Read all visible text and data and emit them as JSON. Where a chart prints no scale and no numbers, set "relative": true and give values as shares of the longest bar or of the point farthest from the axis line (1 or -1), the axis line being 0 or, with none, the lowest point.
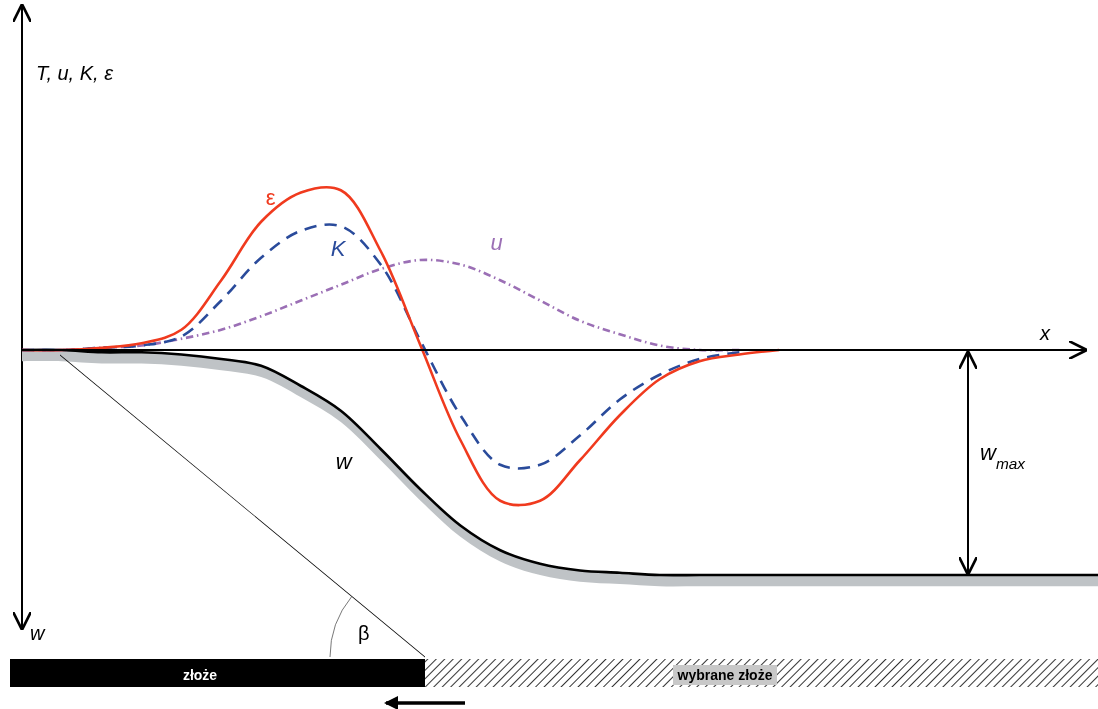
{
  "chart_data": {
    "type": "line",
    "relative": true,
    "xlabel": "x",
    "categories": [
      null,
      null,
      null,
      null,
      null,
      null,
      null,
      null,
      null,
      null,
      null,
      null,
      null,
      null,
      null,
      null,
      null,
      null,
      null,
      null,
      null,
      null,
      null,
      null,
      null,
      null,
      null,
      null
    ],
    "series": [
      {
        "name": "w",
        "color": "#000000",
        "line_style": "solid",
        "values": [
          0,
          0,
          -0.01,
          -0.01,
          -0.02,
          -0.04,
          -0.07,
          -0.16,
          -0.27,
          -0.44,
          -0.62,
          -0.78,
          -0.89,
          -0.95,
          -0.98,
          -0.99,
          -1,
          -1,
          -1,
          -1,
          -1,
          -1,
          -1,
          -1,
          -1,
          -1,
          -1,
          -1
        ],
        "upper": [
          0,
          0,
          -0.01,
          -0.01,
          -0.02,
          -0.04,
          -0.07,
          -0.16,
          -0.27,
          -0.44,
          -0.62,
          -0.78,
          -0.89,
          -0.95,
          -0.98,
          -0.99,
          -1,
          -1,
          -1,
          -1,
          -1,
          -1,
          -1,
          -1,
          -1,
          -1,
          -1,
          -1
        ],
        "lower": [
          -0.05,
          -0.05,
          -0.06,
          -0.06,
          -0.07,
          -0.09,
          -0.12,
          -0.21,
          -0.32,
          -0.49,
          -0.67,
          -0.83,
          -0.94,
          -1,
          -1.03,
          -1.04,
          -1.05,
          -1.05,
          -1.05,
          -1.05,
          -1.05,
          -1.05,
          -1.05,
          -1.05,
          -1.05,
          -1.05,
          -1.05,
          -1.05
        ]
      },
      {
        "name": "u",
        "color": "#9b6fb5",
        "line_style": "dashdot",
        "values": [
          0,
          0,
          0.01,
          0.02,
          0.05,
          0.09,
          0.15,
          0.22,
          0.29,
          0.36,
          0.4,
          0.38,
          0.31,
          0.22,
          0.13,
          0.07,
          0.02,
          0,
          0,
          null,
          null,
          null,
          null,
          null,
          null,
          null,
          null,
          null
        ]
      },
      {
        "name": "K",
        "color": "#2a4b9b",
        "line_style": "dashed",
        "values": [
          0,
          0,
          0.01,
          0.02,
          0.06,
          0.22,
          0.41,
          0.53,
          0.55,
          0.38,
          0.04,
          -0.29,
          -0.51,
          -0.51,
          -0.38,
          -0.22,
          -0.11,
          -0.04,
          -0.01,
          null,
          null,
          null,
          null,
          null,
          null,
          null,
          null,
          null
        ]
      },
      {
        "name": "ε",
        "color": "#f03a1e",
        "line_style": "solid",
        "values": [
          0,
          0,
          0.01,
          0.03,
          0.09,
          0.31,
          0.57,
          0.7,
          0.71,
          0.44,
          0.02,
          -0.4,
          -0.67,
          -0.67,
          -0.49,
          -0.29,
          -0.13,
          -0.05,
          -0.02,
          0,
          null,
          null,
          null,
          null,
          null,
          null,
          null,
          null
        ]
      }
    ],
    "annotations": [
      "w",
      "w$_{max}$",
      "β",
      "złoże",
      "wybrane złoże",
      "T, u, K, ε"
    ]
  }
}
